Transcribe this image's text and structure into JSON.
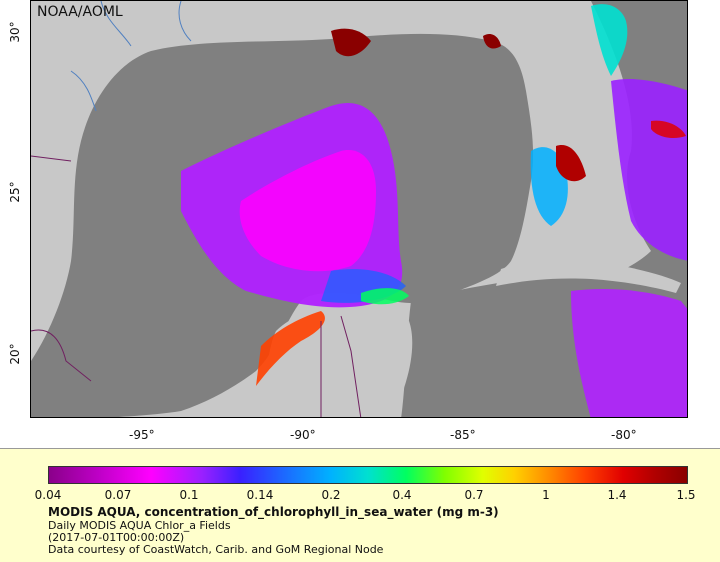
{
  "map": {
    "credit": "NOAA/AOML",
    "x_ticks": [
      "-95°",
      "-90°",
      "-85°",
      "-80°"
    ],
    "y_ticks": [
      "30°",
      "25°",
      "20°"
    ],
    "colors": {
      "land": "#c8c8c8",
      "no_data": "#808080",
      "border": "#702060",
      "river": "#5080c0"
    }
  },
  "legend": {
    "colorbar_ticks": [
      "0.04",
      "0.07",
      "0.1",
      "0.14",
      "0.2",
      "0.4",
      "0.7",
      "1",
      "1.4",
      "1.5"
    ],
    "title": "MODIS AQUA, concentration_of_chlorophyll_in_sea_water (mg m-3)",
    "line1": "Daily MODIS AQUA Chlor_a Fields",
    "line2": "(2017-07-01T00:00:00Z)",
    "line3": "Data courtesy of CoastWatch, Carib. and GoM Regional Node",
    "background": "#ffffcc"
  }
}
